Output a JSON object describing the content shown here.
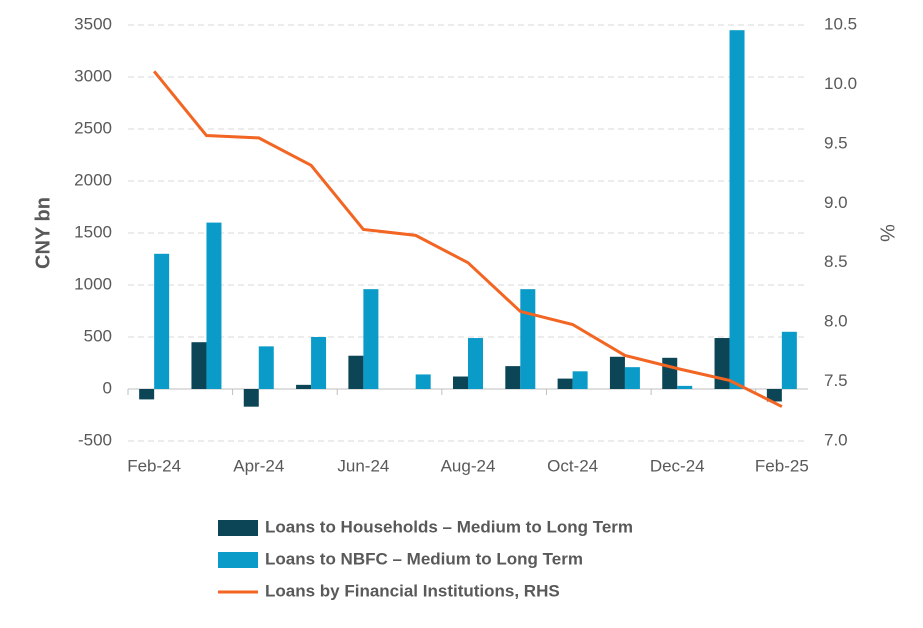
{
  "chart_data": {
    "type": "bar",
    "y_label": "CNY bn",
    "y2_label": "%",
    "categories": [
      "Feb-24",
      null,
      "Apr-24",
      null,
      "Jun-24",
      null,
      "Aug-24",
      null,
      "Oct-24",
      null,
      "Dec-24",
      null,
      "Feb-25"
    ],
    "series": [
      {
        "name": "Loans to Households – Medium to Long Term",
        "color": "#0c4556",
        "type": "bar",
        "values": [
          -100,
          450,
          -170,
          40,
          320,
          0,
          120,
          220,
          100,
          310,
          300,
          490,
          -120
        ]
      },
      {
        "name": "Loans to NBFC – Medium to Long Term",
        "color": "#0b9bc9",
        "type": "bar",
        "values": [
          1300,
          1600,
          410,
          500,
          960,
          140,
          490,
          960,
          170,
          210,
          30,
          3450,
          550
        ]
      },
      {
        "name": "Loans by Financial Institutions, RHS",
        "color": "#f26522",
        "type": "line",
        "axis": "y2",
        "values": [
          10.11,
          9.57,
          9.55,
          9.32,
          8.78,
          8.73,
          8.5,
          8.09,
          7.98,
          7.72,
          7.61,
          7.51,
          7.29
        ]
      }
    ],
    "ylim": [
      -500,
      3500
    ],
    "yticks": [
      -500,
      0,
      500,
      1000,
      1500,
      2000,
      2500,
      3000,
      3500
    ],
    "y2lim": [
      7.0,
      10.5
    ],
    "y2ticks": [
      {
        "value": 7,
        "label": "7.0"
      },
      7.5,
      {
        "value": 8,
        "label": "8.0"
      },
      8.5,
      {
        "value": 9,
        "label": "9.0"
      },
      9.5,
      {
        "value": 10,
        "label": "10.0"
      },
      10.5
    ],
    "grid": true,
    "legend": "bottom"
  }
}
